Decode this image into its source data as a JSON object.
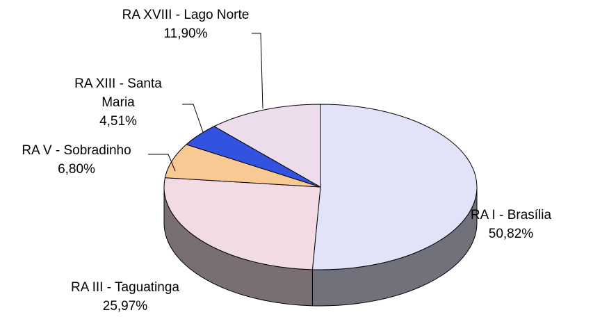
{
  "chart_data": {
    "type": "pie3d",
    "categories": [
      "RA I - Brasília",
      "RA III - Taguatinga",
      "RA V - Sobradinho",
      "RA XIII - Santa Maria",
      "RA XVIII - Lago Norte"
    ],
    "values": [
      50.82,
      25.97,
      6.8,
      4.51,
      11.9
    ],
    "value_labels": [
      "50,82%",
      "25,97%",
      "6,80%",
      "4,51%",
      "11,90%"
    ],
    "colors": [
      "#e2e2f8",
      "#f2dbe4",
      "#f9c994",
      "#3352e0",
      "#ecdcec"
    ]
  }
}
